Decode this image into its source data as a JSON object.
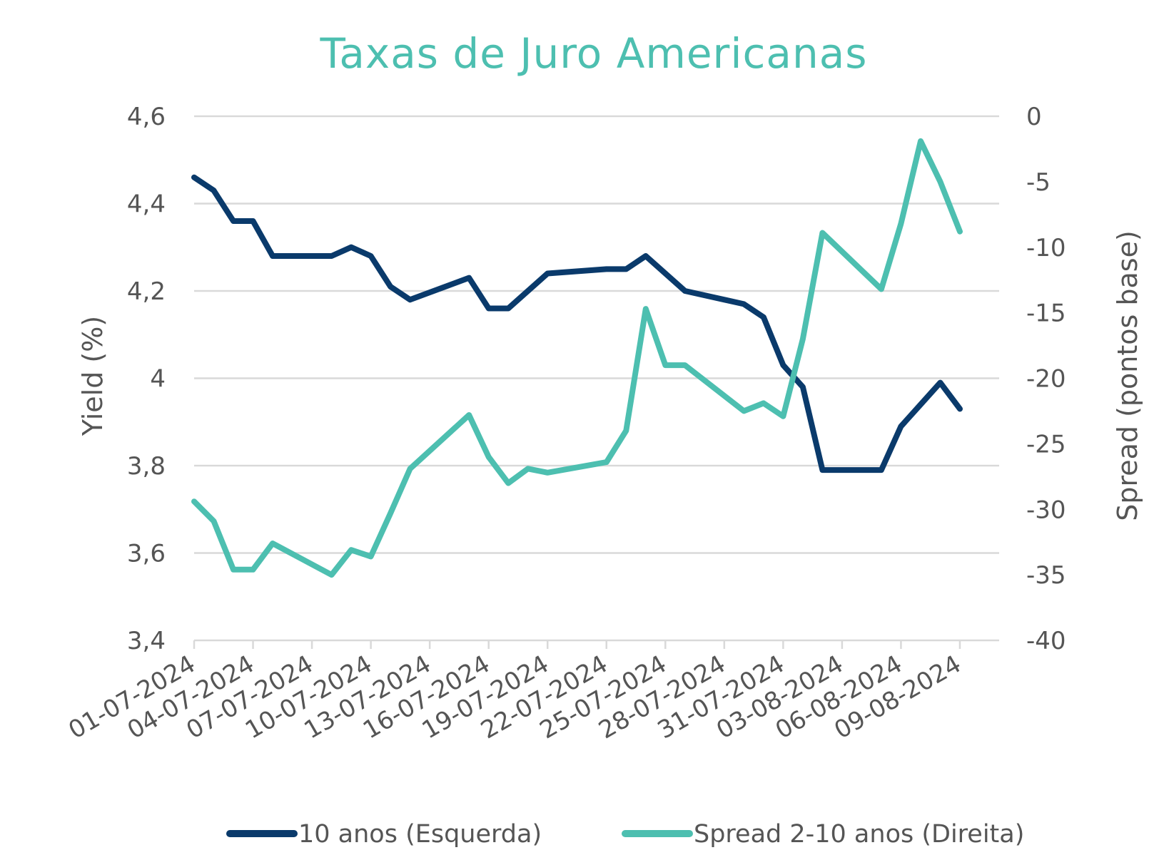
{
  "chart_data": {
    "type": "line",
    "title": "Taxas de Juro Americanas",
    "ylabel": "Yield (%)",
    "y2label": "Spread (pontos base)",
    "xlabel": "",
    "ylim": [
      3.4,
      4.6
    ],
    "y2lim": [
      -40,
      0
    ],
    "yticks": [
      "3,4",
      "3,6",
      "3,8",
      "4",
      "4,2",
      "4,4",
      "4,6"
    ],
    "y2ticks": [
      "-40",
      "-35",
      "-30",
      "-25",
      "-20",
      "-15",
      "-10",
      "-5",
      "0"
    ],
    "xlim": [
      "2024-07-01",
      "2024-08-11"
    ],
    "xticks": [
      "01-07-2024",
      "04-07-2024",
      "07-07-2024",
      "10-07-2024",
      "13-07-2024",
      "16-07-2024",
      "19-07-2024",
      "22-07-2024",
      "25-07-2024",
      "28-07-2024",
      "31-07-2024",
      "03-08-2024",
      "06-08-2024",
      "09-08-2024"
    ],
    "grid": true,
    "legend_position": "bottom",
    "series": [
      {
        "name": "10 anos (Esquerda)",
        "axis": "left",
        "color": "#0a3a6b",
        "points": [
          [
            "2024-07-01",
            4.46
          ],
          [
            "2024-07-02",
            4.43
          ],
          [
            "2024-07-03",
            4.36
          ],
          [
            "2024-07-04",
            4.36
          ],
          [
            "2024-07-05",
            4.28
          ],
          [
            "2024-07-08",
            4.28
          ],
          [
            "2024-07-09",
            4.3
          ],
          [
            "2024-07-10",
            4.28
          ],
          [
            "2024-07-11",
            4.21
          ],
          [
            "2024-07-12",
            4.18
          ],
          [
            "2024-07-15",
            4.23
          ],
          [
            "2024-07-16",
            4.16
          ],
          [
            "2024-07-17",
            4.16
          ],
          [
            "2024-07-18",
            4.2
          ],
          [
            "2024-07-19",
            4.24
          ],
          [
            "2024-07-22",
            4.25
          ],
          [
            "2024-07-23",
            4.25
          ],
          [
            "2024-07-24",
            4.28
          ],
          [
            "2024-07-25",
            4.24
          ],
          [
            "2024-07-26",
            4.2
          ],
          [
            "2024-07-29",
            4.17
          ],
          [
            "2024-07-30",
            4.14
          ],
          [
            "2024-07-31",
            4.03
          ],
          [
            "2024-08-01",
            3.98
          ],
          [
            "2024-08-02",
            3.79
          ],
          [
            "2024-08-05",
            3.79
          ],
          [
            "2024-08-06",
            3.89
          ],
          [
            "2024-08-07",
            3.94
          ],
          [
            "2024-08-08",
            3.99
          ],
          [
            "2024-08-09",
            3.93
          ]
        ]
      },
      {
        "name": "Spread 2-10 anos (Direita)",
        "axis": "right",
        "color": "#4dbfb0",
        "points": [
          [
            "2024-07-01",
            -29.4
          ],
          [
            "2024-07-02",
            -30.9
          ],
          [
            "2024-07-03",
            -34.6
          ],
          [
            "2024-07-04",
            -34.6
          ],
          [
            "2024-07-05",
            -32.6
          ],
          [
            "2024-07-08",
            -35.0
          ],
          [
            "2024-07-09",
            -33.1
          ],
          [
            "2024-07-10",
            -33.6
          ],
          [
            "2024-07-11",
            -30.3
          ],
          [
            "2024-07-12",
            -26.9
          ],
          [
            "2024-07-15",
            -22.8
          ],
          [
            "2024-07-16",
            -26.0
          ],
          [
            "2024-07-17",
            -28.0
          ],
          [
            "2024-07-18",
            -26.9
          ],
          [
            "2024-07-19",
            -27.2
          ],
          [
            "2024-07-22",
            -26.4
          ],
          [
            "2024-07-23",
            -24.0
          ],
          [
            "2024-07-24",
            -14.7
          ],
          [
            "2024-07-25",
            -19.0
          ],
          [
            "2024-07-26",
            -19.0
          ],
          [
            "2024-07-29",
            -22.5
          ],
          [
            "2024-07-30",
            -21.9
          ],
          [
            "2024-07-31",
            -22.9
          ],
          [
            "2024-08-01",
            -17.0
          ],
          [
            "2024-08-02",
            -8.9
          ],
          [
            "2024-08-05",
            -13.2
          ],
          [
            "2024-08-06",
            -8.2
          ],
          [
            "2024-08-07",
            -1.9
          ],
          [
            "2024-08-08",
            -5.0
          ],
          [
            "2024-08-09",
            -8.8
          ]
        ]
      }
    ]
  }
}
